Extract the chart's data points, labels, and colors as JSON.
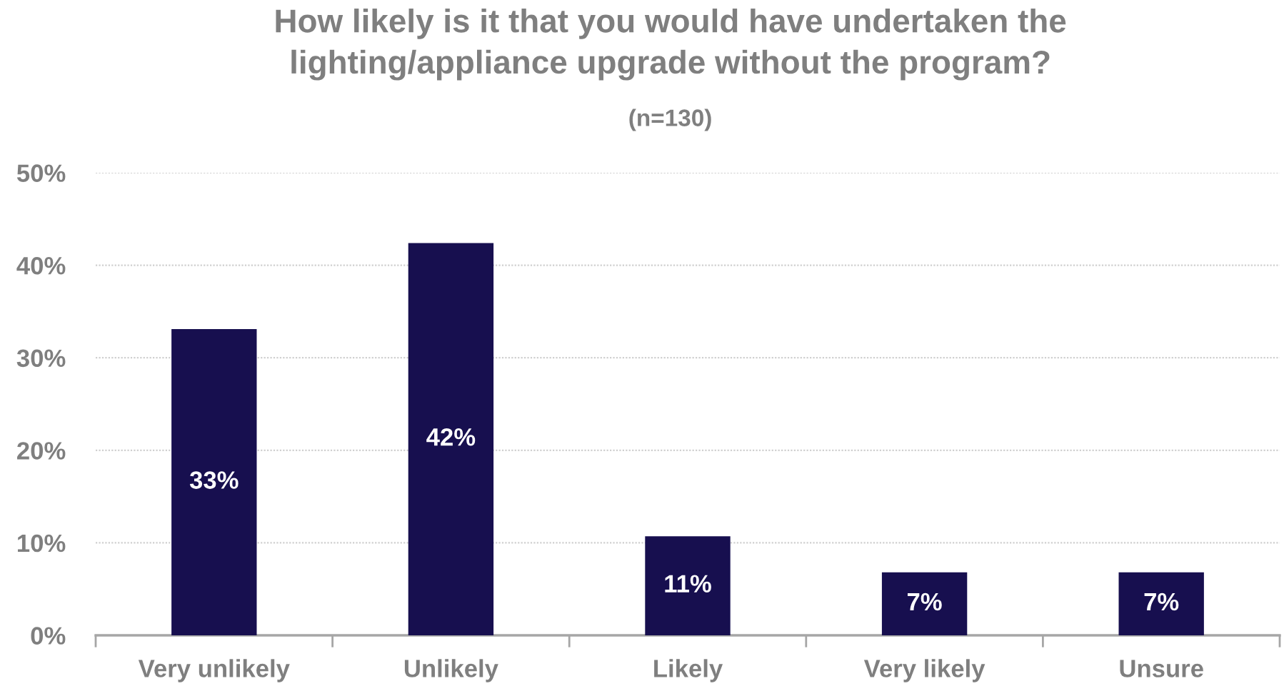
{
  "chart_data": {
    "type": "bar",
    "title": "How likely is it that you would have undertaken the\nlighting/appliance upgrade without the program?",
    "subtitle": "(n=130)",
    "categories": [
      "Very unlikely",
      "Unlikely",
      "Likely",
      "Very likely",
      "Unsure"
    ],
    "values": [
      33.1,
      42.4,
      10.7,
      6.8,
      6.8
    ],
    "value_labels": [
      "33%",
      "42%",
      "11%",
      "7%",
      "7%"
    ],
    "color": "#170f4f",
    "ylim": [
      0,
      50
    ],
    "yticks": [
      {
        "value": 0,
        "label": "0%"
      },
      {
        "value": 10,
        "label": "10%"
      },
      {
        "value": 20,
        "label": "20%"
      },
      {
        "value": 30,
        "label": "30%"
      },
      {
        "value": 40,
        "label": "40%"
      },
      {
        "value": 50,
        "label": "50%"
      }
    ],
    "grid": "y"
  }
}
